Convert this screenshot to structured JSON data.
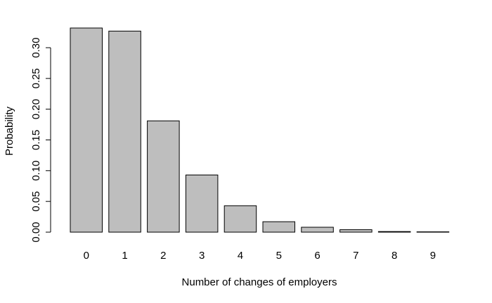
{
  "chart_data": {
    "type": "bar",
    "title": "",
    "xlabel": "Number of changes of employers",
    "ylabel": "Probability",
    "categories": [
      "0",
      "1",
      "2",
      "3",
      "4",
      "5",
      "6",
      "7",
      "8",
      "9"
    ],
    "values": [
      0.332,
      0.327,
      0.181,
      0.093,
      0.043,
      0.017,
      0.008,
      0.004,
      0.001,
      0.0005
    ],
    "ylim": [
      0,
      0.33
    ],
    "yticks": [
      "0.00",
      "0.05",
      "0.10",
      "0.15",
      "0.20",
      "0.25",
      "0.30"
    ],
    "grid": false,
    "legend": "none",
    "bar_color": "#bebebe",
    "edge_color": "#000000"
  }
}
